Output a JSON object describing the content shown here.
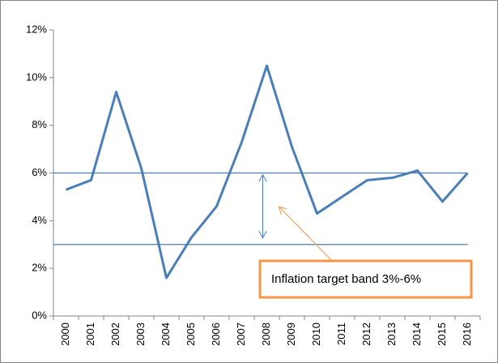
{
  "chart_data": {
    "type": "line",
    "categories": [
      "2000",
      "2001",
      "2002",
      "2003",
      "2004",
      "2005",
      "2006",
      "2007",
      "2008",
      "2009",
      "2010",
      "2011",
      "2012",
      "2013",
      "2014",
      "2015",
      "2016"
    ],
    "series": [
      {
        "color": "#4a7ebb",
        "values": [
          5.3,
          5.7,
          9.4,
          6.2,
          1.6,
          3.3,
          4.6,
          7.3,
          10.5,
          7.1,
          4.3,
          5.0,
          5.7,
          5.8,
          6.1,
          4.8,
          6.0
        ]
      }
    ],
    "ylim": [
      0,
      12
    ],
    "yticks": [
      {
        "value": 0,
        "label": "0%"
      },
      {
        "value": 2,
        "label": "2%"
      },
      {
        "value": 4,
        "label": "4%"
      },
      {
        "value": 6,
        "label": "6%"
      },
      {
        "value": 8,
        "label": "8%"
      },
      {
        "value": 10,
        "label": "10%"
      },
      {
        "value": 12,
        "label": "12%"
      }
    ],
    "grid": false,
    "annotation": "Inflation target band 3%-6%",
    "target_band": {
      "low": 3,
      "high": 6,
      "color": "#4a7ebb"
    },
    "annotation_color": "#f79646"
  }
}
